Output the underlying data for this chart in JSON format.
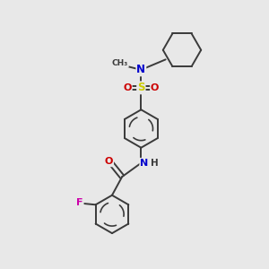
{
  "background_color": "#e8e8e8",
  "atom_colors": {
    "C": "#3a3a3a",
    "N": "#0000cc",
    "O": "#cc0000",
    "S": "#cccc00",
    "F": "#cc00aa",
    "H": "#3a3a3a"
  },
  "bond_color": "#3a3a3a",
  "bond_width": 1.4,
  "figsize": [
    3.0,
    3.0
  ],
  "dpi": 100
}
